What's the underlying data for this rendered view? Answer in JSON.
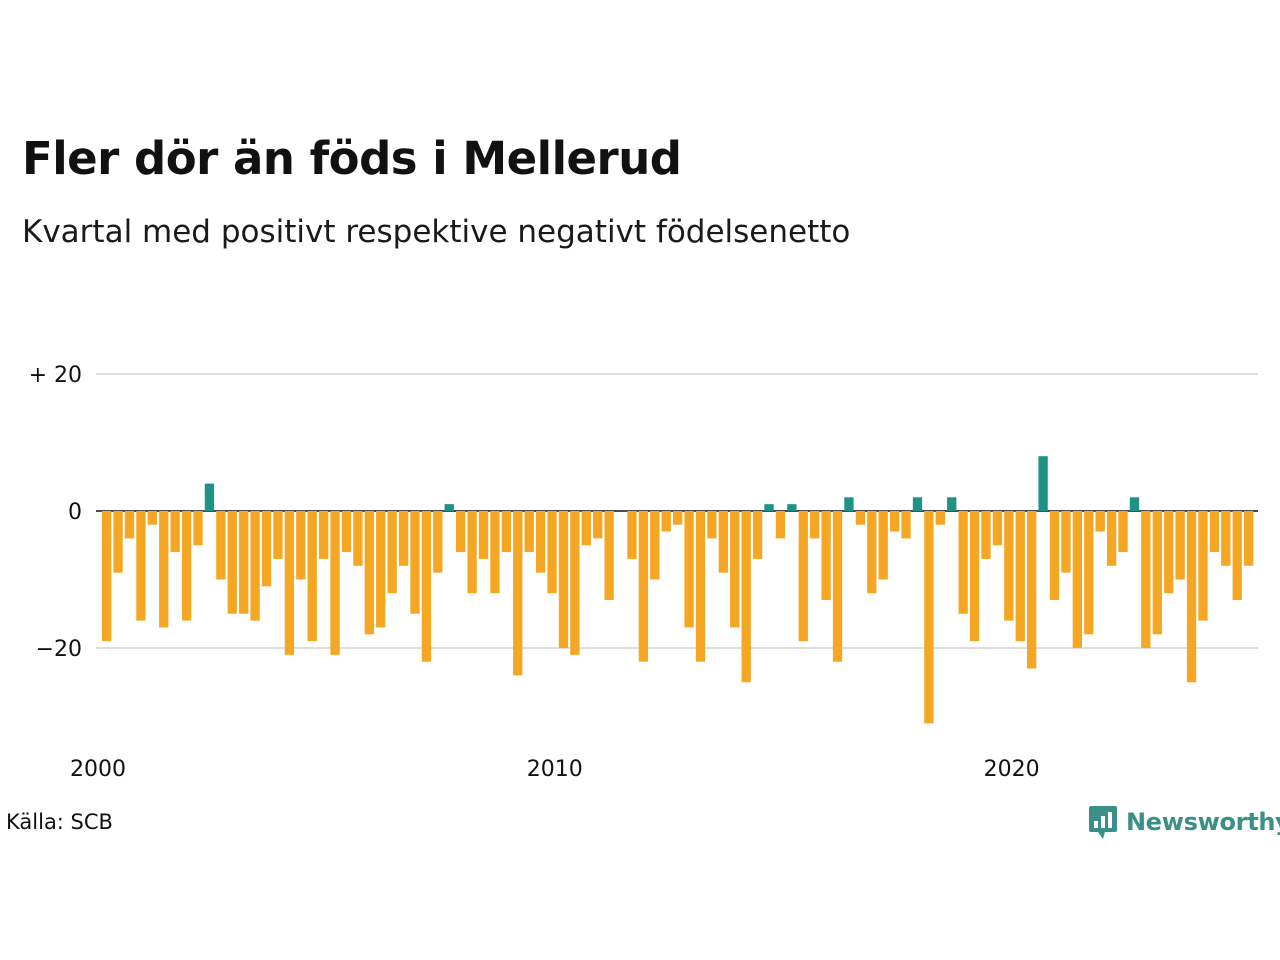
{
  "title": "Fler dör än föds i Mellerud",
  "subtitle": "Kvartal med positivt respektive negativt födelsenetto",
  "source": "Källa: SCB",
  "brand": {
    "name": "Newsworthy",
    "icon": "newsworthy-logo-icon",
    "color": "#3a8f86"
  },
  "colors": {
    "positive": "#1f9286",
    "negative": "#f5a623",
    "grid": "#dddddd",
    "zero_line": "#111111"
  },
  "chart_data": {
    "type": "bar",
    "title": "Fler dör än föds i Mellerud",
    "subtitle": "Kvartal med positivt respektive negativt födelsenetto",
    "xlabel": "",
    "ylabel": "",
    "ylim": [
      -32,
      25
    ],
    "grid": true,
    "legend": "none",
    "y_ticks": [
      {
        "value": 20,
        "label": "+ 20"
      },
      {
        "value": 0,
        "label": "0"
      },
      {
        "value": -20,
        "label": "−20"
      }
    ],
    "x_ticks": [
      {
        "value": 2000,
        "label": "2000"
      },
      {
        "value": 2010,
        "label": "2010"
      },
      {
        "value": 2020,
        "label": "2020"
      }
    ],
    "x_start": 2000,
    "periods_per_year": 4,
    "values": [
      -19,
      -9,
      -4,
      -16,
      -2,
      -17,
      -6,
      -16,
      -5,
      4,
      -10,
      -15,
      -15,
      -16,
      -11,
      -7,
      -21,
      -10,
      -19,
      -7,
      -21,
      -6,
      -8,
      -18,
      -17,
      -12,
      -8,
      -15,
      -22,
      -9,
      1,
      -6,
      -12,
      -7,
      -12,
      -6,
      -24,
      -6,
      -9,
      -12,
      -20,
      -21,
      -5,
      -4,
      -13,
      0,
      -7,
      -22,
      -10,
      -3,
      -2,
      -17,
      -22,
      -4,
      -9,
      -17,
      -25,
      -7,
      1,
      -4,
      1,
      -19,
      -4,
      -13,
      -22,
      2,
      -2,
      -12,
      -10,
      -3,
      -4,
      2,
      -31,
      -2,
      2,
      -15,
      -19,
      -7,
      -5,
      -16,
      -19,
      -23,
      8,
      -13,
      -9,
      -20,
      -18,
      -3,
      -8,
      -6,
      2,
      -20,
      -18,
      -12,
      -10,
      -25,
      -16,
      -6,
      -8,
      -13,
      -8
    ]
  }
}
